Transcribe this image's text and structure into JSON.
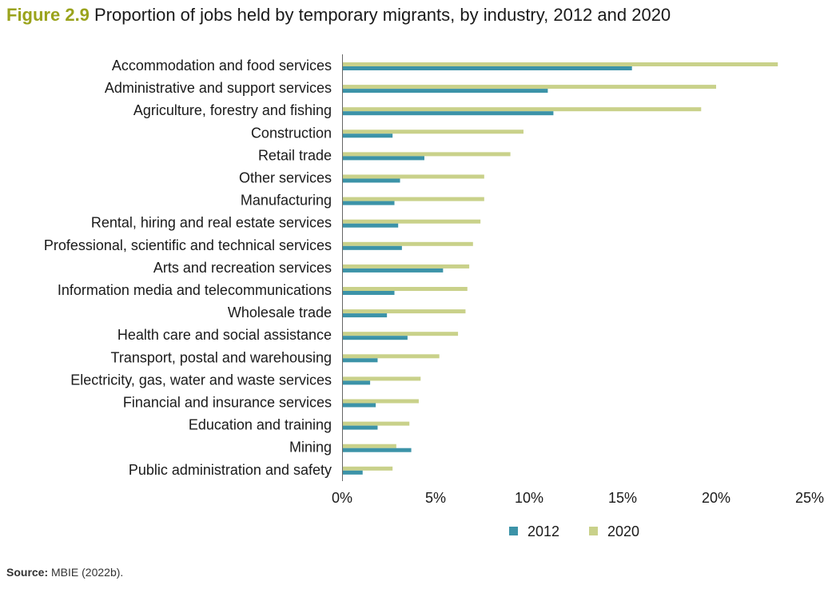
{
  "title": {
    "figure_label": "Figure 2.9",
    "text": "Proportion of jobs held by temporary migrants, by industry, 2012 and 2020"
  },
  "source": {
    "label": "Source:",
    "text": "MBIE (2022b)."
  },
  "colors": {
    "title_accent": "#9aa31c",
    "series_2012": "#3c93a8",
    "series_2020": "#c9d18a"
  },
  "chart_data": {
    "type": "bar",
    "orientation": "horizontal",
    "title": "Proportion of jobs held by temporary migrants, by industry, 2012 and 2020",
    "xlabel": "",
    "ylabel": "",
    "xlim": [
      0,
      25
    ],
    "x_ticks": [
      "0%",
      "5%",
      "10%",
      "15%",
      "20%",
      "25%"
    ],
    "legend_position": "bottom",
    "grid": false,
    "categories": [
      "Accommodation and food services",
      "Administrative and support services",
      "Agriculture, forestry and fishing",
      "Construction",
      "Retail trade",
      "Other services",
      "Manufacturing",
      "Rental, hiring and real estate services",
      "Professional, scientific and technical services",
      "Arts and recreation services",
      "Information media and telecommunications",
      "Wholesale trade",
      "Health care and social assistance",
      "Transport, postal and warehousing",
      "Electricity, gas, water and waste services",
      "Financial and insurance services",
      "Education and training",
      "Mining",
      "Public administration and safety"
    ],
    "series": [
      {
        "name": "2012",
        "values": [
          15.5,
          11.0,
          11.3,
          2.7,
          4.4,
          3.1,
          2.8,
          3.0,
          3.2,
          5.4,
          2.8,
          2.4,
          3.5,
          1.9,
          1.5,
          1.8,
          1.9,
          3.7,
          1.1
        ]
      },
      {
        "name": "2020",
        "values": [
          23.3,
          20.0,
          19.2,
          9.7,
          9.0,
          7.6,
          7.6,
          7.4,
          7.0,
          6.8,
          6.7,
          6.6,
          6.2,
          5.2,
          4.2,
          4.1,
          3.6,
          2.9,
          2.7
        ]
      }
    ]
  }
}
